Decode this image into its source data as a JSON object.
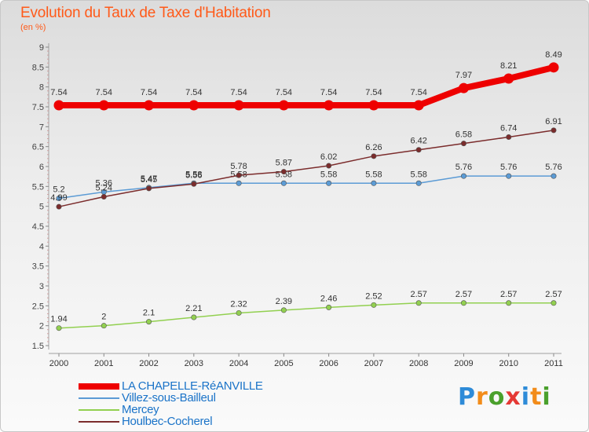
{
  "chart_data": {
    "type": "line",
    "title": "Evolution du Taux de Taxe d'Habitation",
    "ylabel": "(en %)",
    "xlabel": "",
    "ylim": [
      1.5,
      9
    ],
    "yticks": [
      "9",
      "8.5",
      "8",
      "7.5",
      "7",
      "6.5",
      "6",
      "5.5",
      "5",
      "4.5",
      "4",
      "3.5",
      "3",
      "2.5",
      "2",
      "1.5"
    ],
    "categories": [
      "2000",
      "2001",
      "2002",
      "2003",
      "2004",
      "2005",
      "2006",
      "2007",
      "2008",
      "2009",
      "2010",
      "2011"
    ],
    "series": [
      {
        "name": "LA CHAPELLE-RéANVILLE",
        "color": "#ee0000",
        "values": [
          7.54,
          7.54,
          7.54,
          7.54,
          7.54,
          7.54,
          7.54,
          7.54,
          7.54,
          7.97,
          8.21,
          8.49
        ],
        "labels": [
          "7.54",
          "7.54",
          "7.54",
          "7.54",
          "7.54",
          "7.54",
          "7.54",
          "7.54",
          "7.54",
          "7.97",
          "8.21",
          "8.49"
        ]
      },
      {
        "name": "Villez-sous-Bailleul",
        "color": "#5b9bd5",
        "values": [
          5.2,
          5.36,
          5.47,
          5.58,
          5.58,
          5.58,
          5.58,
          5.58,
          5.58,
          5.76,
          5.76,
          5.76
        ],
        "labels": [
          "5.2",
          "5.36",
          "5.47",
          "5.58",
          "5.58",
          "5.58",
          "5.58",
          "5.58",
          "5.58",
          "5.76",
          "5.76",
          "5.76"
        ]
      },
      {
        "name": "Mercey",
        "color": "#92d050",
        "values": [
          1.94,
          2,
          2.1,
          2.21,
          2.32,
          2.39,
          2.46,
          2.52,
          2.57,
          2.57,
          2.57,
          2.57
        ],
        "labels": [
          "1.94",
          "2",
          "2.1",
          "2.21",
          "2.32",
          "2.39",
          "2.46",
          "2.52",
          "2.57",
          "2.57",
          "2.57",
          "2.57"
        ]
      },
      {
        "name": "Houlbec-Cocherel",
        "color": "#7b2c2c",
        "values": [
          4.99,
          5.24,
          5.45,
          5.56,
          5.78,
          5.87,
          6.02,
          6.26,
          6.42,
          6.58,
          6.74,
          6.91
        ],
        "labels": [
          "4.99",
          "5.24",
          "5.45",
          "5.56",
          "5.78",
          "5.87",
          "6.02",
          "6.26",
          "6.42",
          "6.58",
          "6.74",
          "6.91"
        ]
      }
    ]
  },
  "brand": "Proxiti"
}
